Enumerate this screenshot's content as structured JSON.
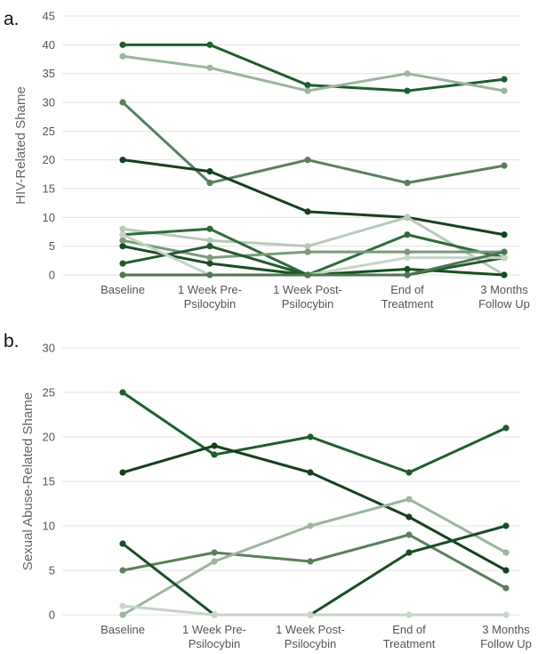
{
  "chart_data": [
    {
      "type": "line",
      "panel_label": "a.",
      "title": "",
      "xlabel": "",
      "ylabel": "HIV-Related Shame",
      "ylim": [
        0,
        45
      ],
      "yticks": [
        "0",
        "5",
        "10",
        "15",
        "20",
        "25",
        "30",
        "35",
        "40",
        "45"
      ],
      "grid": true,
      "categories": [
        [
          "Baseline"
        ],
        [
          "1 Week Pre-",
          "Psilocybin"
        ],
        [
          "1 Week Post-",
          "Psilocybin"
        ],
        [
          "End of",
          "Treatment"
        ],
        [
          "3 Months",
          "Follow Up"
        ]
      ],
      "series": [
        {
          "color": "#1f5e2c",
          "values": [
            40,
            40,
            33,
            32,
            34
          ]
        },
        {
          "color": "#9db49d",
          "values": [
            38,
            36,
            32,
            35,
            32
          ]
        },
        {
          "color": "#5b7f5e",
          "values": [
            30,
            16,
            20,
            16,
            19
          ]
        },
        {
          "color": "#173f1f",
          "values": [
            20,
            18,
            11,
            10,
            7
          ]
        },
        {
          "color": "#b9c9b9",
          "values": [
            8,
            6,
            5,
            10,
            0
          ]
        },
        {
          "color": "#2f6b3a",
          "values": [
            7,
            8,
            0,
            7,
            3
          ]
        },
        {
          "color": "#1a4d25",
          "values": [
            5,
            2,
            0,
            1,
            0
          ]
        },
        {
          "color": "#7a9a7c",
          "values": [
            6,
            3,
            4,
            4,
            4
          ]
        },
        {
          "color": "#235a2e",
          "values": [
            2,
            5,
            0,
            0,
            3
          ]
        },
        {
          "color": "#c6d4c6",
          "values": [
            7,
            0,
            0,
            3,
            3
          ]
        },
        {
          "color": "#4e7752",
          "values": [
            0,
            0,
            0,
            0,
            4
          ]
        }
      ]
    },
    {
      "type": "line",
      "panel_label": "b.",
      "title": "",
      "xlabel": "",
      "ylabel": "Sexual Abuse-Related Shame",
      "ylim": [
        0,
        30
      ],
      "yticks": [
        "0",
        "5",
        "10",
        "15",
        "20",
        "25",
        "30"
      ],
      "grid": true,
      "categories": [
        [
          "Baseline"
        ],
        [
          "1 Week Pre-",
          "Psilocybin"
        ],
        [
          "1 Week Post-",
          "Psilocybin"
        ],
        [
          "End of",
          "Treatment"
        ],
        [
          "3 Months",
          "Follow Up"
        ]
      ],
      "series": [
        {
          "color": "#1f5e2c",
          "values": [
            25,
            18,
            20,
            16,
            21
          ]
        },
        {
          "color": "#173f1f",
          "values": [
            16,
            19,
            16,
            11,
            5
          ]
        },
        {
          "color": "#5b7f5e",
          "values": [
            5,
            7,
            6,
            9,
            3
          ]
        },
        {
          "color": "#9db49d",
          "values": [
            0,
            6,
            10,
            13,
            7
          ]
        },
        {
          "color": "#1a4d25",
          "values": [
            8,
            0,
            0,
            7,
            10
          ]
        },
        {
          "color": "#c6d4c6",
          "values": [
            1,
            0,
            0,
            0,
            0
          ]
        }
      ]
    }
  ]
}
